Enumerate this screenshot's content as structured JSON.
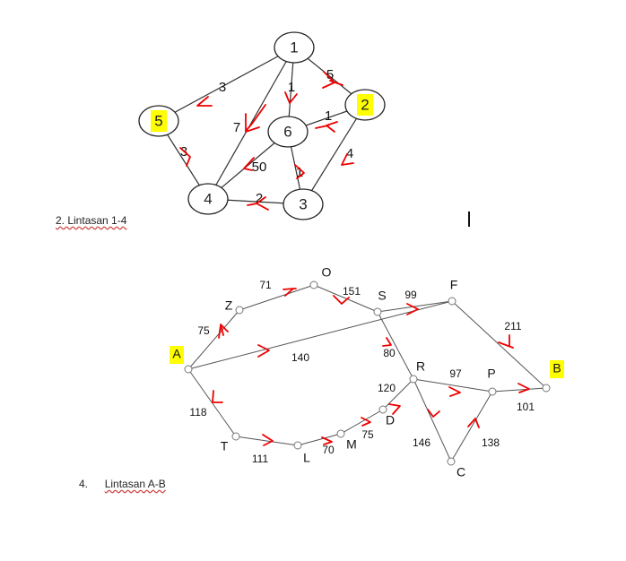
{
  "graph1": {
    "nodes": [
      {
        "id": "n1",
        "label": "1",
        "highlight": false
      },
      {
        "id": "n2",
        "label": "2",
        "highlight": true
      },
      {
        "id": "n3",
        "label": "3",
        "highlight": false
      },
      {
        "id": "n4",
        "label": "4",
        "highlight": false
      },
      {
        "id": "n5",
        "label": "5",
        "highlight": true
      },
      {
        "id": "n6",
        "label": "6",
        "highlight": false
      }
    ],
    "edges": [
      {
        "id": "e15",
        "from": "n1",
        "to": "n5",
        "weight": "3"
      },
      {
        "id": "e12",
        "from": "n1",
        "to": "n2",
        "weight": "5"
      },
      {
        "id": "e16",
        "from": "n1",
        "to": "n6",
        "weight": "1"
      },
      {
        "id": "e14",
        "from": "n1",
        "to": "n4",
        "weight": "7"
      },
      {
        "id": "e26",
        "from": "n2",
        "to": "n6",
        "weight": "1"
      },
      {
        "id": "e23",
        "from": "n2",
        "to": "n3",
        "weight": "4"
      },
      {
        "id": "e54",
        "from": "n5",
        "to": "n4",
        "weight": "3"
      },
      {
        "id": "e64",
        "from": "n6",
        "to": "n4",
        "weight": "50"
      },
      {
        "id": "e63",
        "from": "n6",
        "to": "n3",
        "weight": "1"
      },
      {
        "id": "e43",
        "from": "n4",
        "to": "n3",
        "weight": "2"
      }
    ],
    "caption": "2. Lintasan 1-4"
  },
  "graph2": {
    "nodes": [
      {
        "id": "A",
        "label": "A",
        "highlight": true
      },
      {
        "id": "Z",
        "label": "Z",
        "highlight": false
      },
      {
        "id": "O",
        "label": "O",
        "highlight": false
      },
      {
        "id": "S",
        "label": "S",
        "highlight": false
      },
      {
        "id": "F",
        "label": "F",
        "highlight": false
      },
      {
        "id": "B",
        "label": "B",
        "highlight": true
      },
      {
        "id": "R",
        "label": "R",
        "highlight": false
      },
      {
        "id": "P",
        "label": "P",
        "highlight": false
      },
      {
        "id": "C",
        "label": "C",
        "highlight": false
      },
      {
        "id": "D",
        "label": "D",
        "highlight": false
      },
      {
        "id": "M",
        "label": "M",
        "highlight": false
      },
      {
        "id": "L",
        "label": "L",
        "highlight": false
      },
      {
        "id": "T",
        "label": "T",
        "highlight": false
      }
    ],
    "edges": [
      {
        "id": "eAZ",
        "from": "A",
        "to": "Z",
        "weight": "75"
      },
      {
        "id": "eZO",
        "from": "Z",
        "to": "O",
        "weight": "71"
      },
      {
        "id": "eOS",
        "from": "O",
        "to": "S",
        "weight": "151"
      },
      {
        "id": "eAF",
        "from": "A",
        "to": "F",
        "weight": "140"
      },
      {
        "id": "eSF",
        "from": "S",
        "to": "F",
        "weight": "99"
      },
      {
        "id": "eFB",
        "from": "F",
        "to": "B",
        "weight": "211"
      },
      {
        "id": "eSR",
        "from": "S",
        "to": "R",
        "weight": "80"
      },
      {
        "id": "eRP",
        "from": "R",
        "to": "P",
        "weight": "97"
      },
      {
        "id": "ePB",
        "from": "P",
        "to": "B",
        "weight": "101"
      },
      {
        "id": "eRC",
        "from": "R",
        "to": "C",
        "weight": "146"
      },
      {
        "id": "eCP",
        "from": "C",
        "to": "P",
        "weight": "138"
      },
      {
        "id": "eAT",
        "from": "A",
        "to": "T",
        "weight": "118"
      },
      {
        "id": "eTL",
        "from": "T",
        "to": "L",
        "weight": "111"
      },
      {
        "id": "eLM",
        "from": "L",
        "to": "M",
        "weight": "70"
      },
      {
        "id": "eMD",
        "from": "M",
        "to": "D",
        "weight": "75"
      },
      {
        "id": "eDR",
        "from": "D",
        "to": "R",
        "weight": "120"
      }
    ],
    "caption_number": "4.",
    "caption_text": "Lintasan A-B"
  },
  "colors": {
    "edge": "#555555",
    "node_stroke": "#222222",
    "highlight": "#ffff00",
    "annotation": "#ee0000",
    "small_node_stroke": "#777777"
  }
}
